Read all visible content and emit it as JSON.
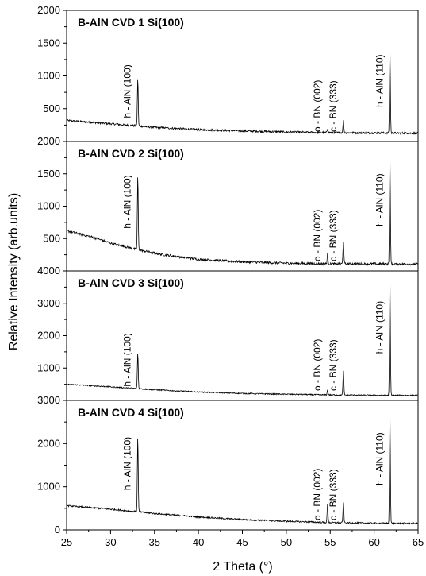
{
  "chart_data": {
    "type": "line",
    "xlabel": "2 Theta (°)",
    "ylabel": "Relative Intensity (arb.units)",
    "xlim": [
      25,
      65
    ],
    "xticks": [
      25,
      30,
      35,
      40,
      45,
      50,
      55,
      60,
      65
    ],
    "line_color": "#000000",
    "panels": [
      {
        "title": "B-AlN CVD 1 Si(100)",
        "ylim": [
          0,
          2000
        ],
        "yticks": [
          500,
          1000,
          1500,
          2000
        ],
        "baseline": [
          [
            25,
            320
          ],
          [
            30,
            270
          ],
          [
            35,
            215
          ],
          [
            40,
            180
          ],
          [
            45,
            160
          ],
          [
            50,
            145
          ],
          [
            55,
            135
          ],
          [
            60,
            130
          ],
          [
            65,
            125
          ]
        ],
        "noise": 30,
        "peaks": [
          {
            "x": 33.1,
            "y": 960,
            "label": "h - AlN (100)"
          },
          {
            "x": 54.7,
            "y": 190,
            "label": "o - BN (002)"
          },
          {
            "x": 56.5,
            "y": 320,
            "label": "c - BN (333)"
          },
          {
            "x": 61.8,
            "y": 1400,
            "label": "h - AlN (110)"
          }
        ]
      },
      {
        "title": "B-AlN CVD 2 Si(100)",
        "ylim": [
          0,
          2000
        ],
        "yticks": [
          500,
          1000,
          1500,
          2000
        ],
        "baseline": [
          [
            25,
            620
          ],
          [
            28,
            520
          ],
          [
            30,
            430
          ],
          [
            33,
            330
          ],
          [
            36,
            250
          ],
          [
            40,
            180
          ],
          [
            45,
            140
          ],
          [
            50,
            120
          ],
          [
            55,
            110
          ],
          [
            60,
            110
          ],
          [
            65,
            105
          ]
        ],
        "noise": 35,
        "peaks": [
          {
            "x": 33.1,
            "y": 1470,
            "label": "h - AlN (100)"
          },
          {
            "x": 54.7,
            "y": 260,
            "label": "o - BN (002)"
          },
          {
            "x": 56.5,
            "y": 470,
            "label": "c - BN (333)"
          },
          {
            "x": 61.8,
            "y": 1760,
            "label": "h - AlN (110)"
          }
        ]
      },
      {
        "title": "B-AlN CVD 3 Si(100)",
        "ylim": [
          0,
          4000
        ],
        "yticks": [
          1000,
          2000,
          3000,
          4000
        ],
        "baseline": [
          [
            25,
            500
          ],
          [
            30,
            420
          ],
          [
            35,
            330
          ],
          [
            40,
            260
          ],
          [
            45,
            215
          ],
          [
            50,
            190
          ],
          [
            55,
            170
          ],
          [
            60,
            160
          ],
          [
            65,
            155
          ]
        ],
        "noise": 35,
        "peaks": [
          {
            "x": 33.1,
            "y": 1470,
            "label": "h - AlN (100)"
          },
          {
            "x": 54.7,
            "y": 320,
            "label": "o - BN (002)"
          },
          {
            "x": 56.5,
            "y": 920,
            "label": "c - BN (333)"
          },
          {
            "x": 61.8,
            "y": 3700,
            "label": "h - AlN (110)"
          }
        ]
      },
      {
        "title": "B-AlN CVD 4 Si(100)",
        "ylim": [
          0,
          3000
        ],
        "yticks": [
          0,
          1000,
          2000,
          3000
        ],
        "baseline": [
          [
            25,
            560
          ],
          [
            30,
            480
          ],
          [
            35,
            380
          ],
          [
            40,
            300
          ],
          [
            45,
            240
          ],
          [
            50,
            200
          ],
          [
            55,
            170
          ],
          [
            60,
            155
          ],
          [
            65,
            150
          ]
        ],
        "noise": 35,
        "peaks": [
          {
            "x": 33.1,
            "y": 2150,
            "label": "h - AlN (100)"
          },
          {
            "x": 54.7,
            "y": 600,
            "label": "o - BN (002)"
          },
          {
            "x": 56.5,
            "y": 640,
            "label": "c - BN (333)"
          },
          {
            "x": 61.8,
            "y": 2650,
            "label": "h - AlN (110)"
          }
        ]
      }
    ]
  }
}
